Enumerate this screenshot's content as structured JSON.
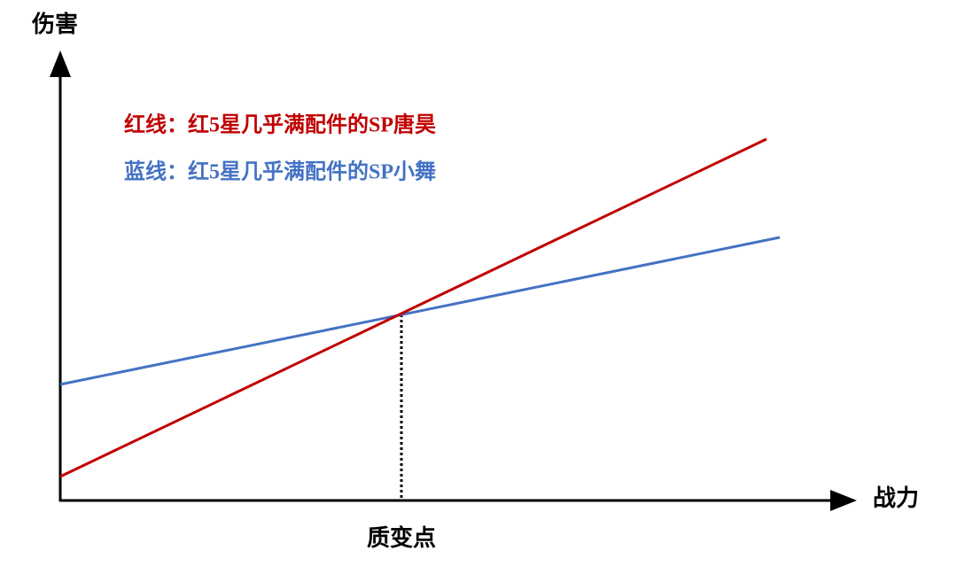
{
  "axes": {
    "y_label": "伤害",
    "x_label": "战力"
  },
  "legend": {
    "red": "红线：红5星几乎满配件的SP唐昊",
    "blue": "蓝线：红5星几乎满配件的SP小舞"
  },
  "annotation": "质变点"
}
